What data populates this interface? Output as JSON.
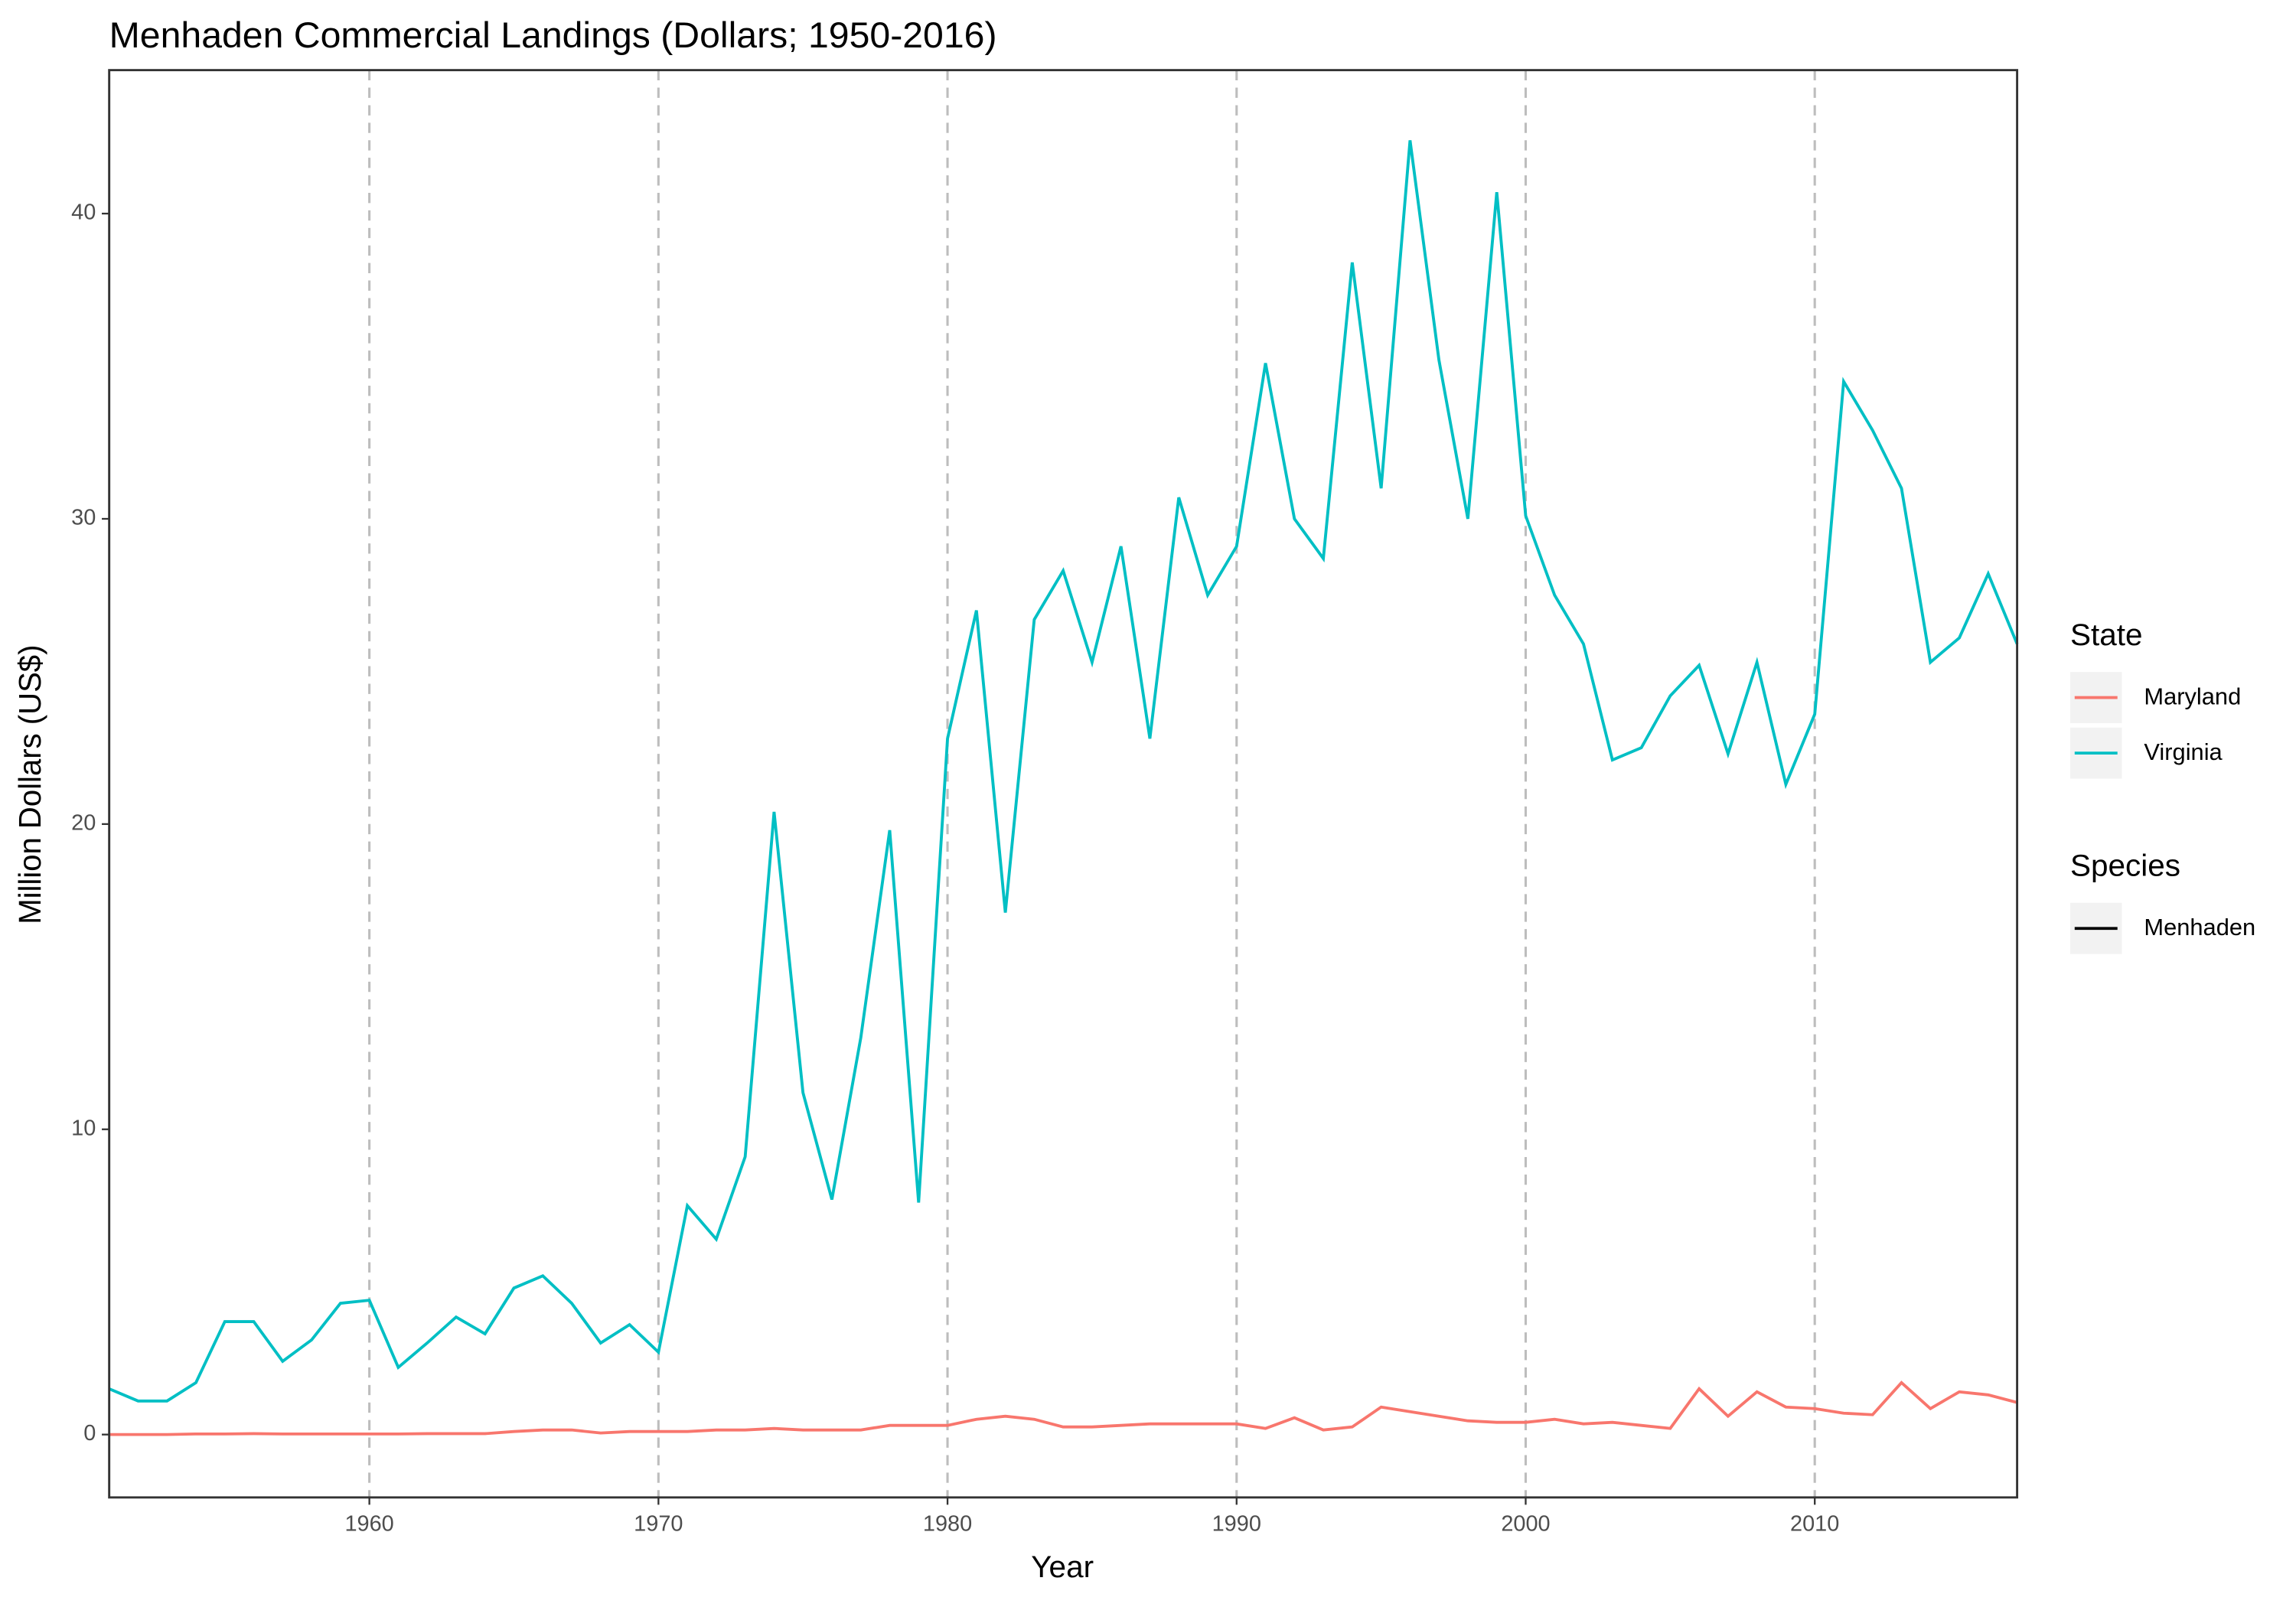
{
  "chart_data": {
    "type": "line",
    "title": "Menhaden Commercial Landings (Dollars; 1950-2016)",
    "x_label": "Year",
    "y_label": "Million Dollars (US$)",
    "x": [
      1951,
      1952,
      1953,
      1954,
      1955,
      1956,
      1957,
      1958,
      1959,
      1960,
      1961,
      1962,
      1963,
      1964,
      1965,
      1966,
      1967,
      1968,
      1969,
      1970,
      1971,
      1972,
      1973,
      1974,
      1975,
      1976,
      1977,
      1978,
      1979,
      1980,
      1981,
      1982,
      1983,
      1984,
      1985,
      1986,
      1987,
      1988,
      1989,
      1990,
      1991,
      1992,
      1993,
      1994,
      1995,
      1996,
      1997,
      1998,
      1999,
      2000,
      2001,
      2002,
      2003,
      2004,
      2005,
      2006,
      2007,
      2008,
      2009,
      2010,
      2011,
      2012,
      2013,
      2014,
      2015,
      2016,
      2017
    ],
    "series": [
      {
        "name": "Maryland",
        "color": "#f8766d",
        "values": [
          0,
          0,
          0,
          0.02,
          0.02,
          0.03,
          0.02,
          0.02,
          0.02,
          0.02,
          0.02,
          0.03,
          0.03,
          0.03,
          0.1,
          0.15,
          0.15,
          0.05,
          0.1,
          0.1,
          0.1,
          0.15,
          0.15,
          0.2,
          0.15,
          0.15,
          0.15,
          0.3,
          0.3,
          0.3,
          0.5,
          0.6,
          0.5,
          0.25,
          0.25,
          0.3,
          0.35,
          0.35,
          0.35,
          0.35,
          0.2,
          0.55,
          0.15,
          0.25,
          0.9,
          0.75,
          0.6,
          0.45,
          0.4,
          0.4,
          0.5,
          0.35,
          0.4,
          0.3,
          0.2,
          1.5,
          0.6,
          1.4,
          0.9,
          0.85,
          0.7,
          0.65,
          1.7,
          0.85,
          1.4,
          1.3,
          1.05
        ]
      },
      {
        "name": "Virginia",
        "color": "#00bfc4",
        "values": [
          1.5,
          1.1,
          1.1,
          1.7,
          3.7,
          3.7,
          2.4,
          3.1,
          4.3,
          4.4,
          2.2,
          3.0,
          3.85,
          3.3,
          4.8,
          5.2,
          4.3,
          3.0,
          3.6,
          2.7,
          7.5,
          6.4,
          9.1,
          20.4,
          11.2,
          7.7,
          13.0,
          19.8,
          7.6,
          22.8,
          27.0,
          17.1,
          26.7,
          28.3,
          25.3,
          29.1,
          22.8,
          30.7,
          27.5,
          29.1,
          35.1,
          30.0,
          28.7,
          38.4,
          31.0,
          42.4,
          35.2,
          30.0,
          40.7,
          30.1,
          27.5,
          25.9,
          22.1,
          22.5,
          24.2,
          25.2,
          22.3,
          25.3,
          21.3,
          23.6,
          34.5,
          32.9,
          31.0,
          25.3,
          26.1,
          28.2,
          25.9
        ]
      }
    ],
    "xlim": [
      1951,
      2017
    ],
    "xticks": [
      1960,
      1970,
      1980,
      1990,
      2000,
      2010
    ],
    "ylim": [
      -2.06,
      44.7
    ],
    "yticks": [
      0,
      10,
      20,
      30,
      40
    ],
    "grid": "x-dashed",
    "legend_position": "right",
    "legend_groups": [
      {
        "title": "State"
      },
      {
        "title": "Species",
        "entries": [
          {
            "name": "Menhaden",
            "color": "#000000"
          }
        ]
      }
    ]
  }
}
